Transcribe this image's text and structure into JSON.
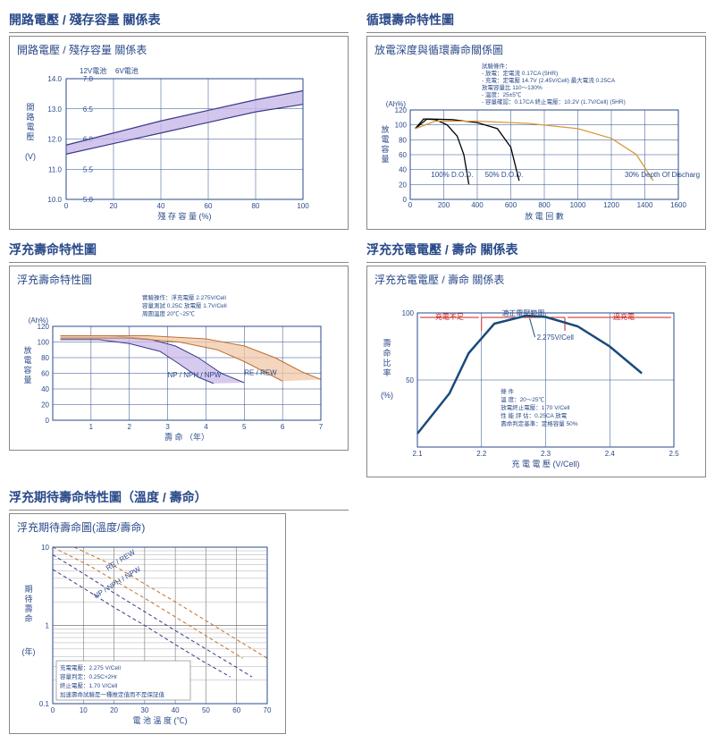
{
  "charts": {
    "ocv": {
      "panel_title": "開路電壓 / 殘存容量 關係表",
      "inner_title": "開路電壓 / 殘存容量 關係表",
      "left_axis_title": "開路電壓 (V)",
      "x_axis_label": "殘 存 容 量 (%)",
      "series_labels": {
        "left": "12V電池",
        "right": "6V電池"
      },
      "xlim": [
        0,
        100
      ],
      "xtick_step": 20,
      "left_ylim": [
        10.0,
        14.0
      ],
      "left_ytick_step": 1.0,
      "right_ylim": [
        5.0,
        7.0
      ],
      "right_ytick_step": 0.5,
      "band": {
        "upper": [
          [
            0,
            11.8
          ],
          [
            20,
            12.2
          ],
          [
            40,
            12.6
          ],
          [
            60,
            12.95
          ],
          [
            80,
            13.3
          ],
          [
            100,
            13.6
          ]
        ],
        "lower": [
          [
            0,
            11.5
          ],
          [
            20,
            11.85
          ],
          [
            40,
            12.2
          ],
          [
            60,
            12.55
          ],
          [
            80,
            12.9
          ],
          [
            100,
            13.15
          ]
        ],
        "fill": "#c8b8e8",
        "line": "#3a3a8a"
      },
      "grid_color": "#2a4a8a",
      "bg": "#ffffff"
    },
    "cycle": {
      "panel_title": "循環壽命特性圖",
      "inner_title": "放電深度與循環壽命關係圖",
      "y_axis_label": "放電容量",
      "x_axis_label": "放 電 回 數",
      "ylim": [
        0,
        120
      ],
      "ytick_step": 20,
      "xlim": [
        0,
        1600
      ],
      "xtick_step": 200,
      "unit_tag": "(Ah%)",
      "notes": [
        "試驗條件：",
        "- 放電：定電流 0.17CA (5HR)",
        "- 充電：定電壓 14.7V (2.45V/Cell)  最大電流 0.25CA",
        "    放電容量比 110～130%",
        "- 溫度：25±5℃",
        "- 容量確認：0.17CA    終止電壓：10.2V (1.7V/Cell) (5HR)"
      ],
      "curves": [
        {
          "label": "100% D.O.D.",
          "color": "#000000",
          "pts": [
            [
              30,
              95
            ],
            [
              80,
              108
            ],
            [
              150,
              107
            ],
            [
              220,
              100
            ],
            [
              280,
              85
            ],
            [
              320,
              60
            ],
            [
              350,
              20
            ]
          ]
        },
        {
          "label": "50% D.O.D.",
          "color": "#000000",
          "pts": [
            [
              30,
              95
            ],
            [
              100,
              108
            ],
            [
              250,
              107
            ],
            [
              400,
              103
            ],
            [
              520,
              95
            ],
            [
              600,
              70
            ],
            [
              650,
              25
            ]
          ]
        },
        {
          "label": "30% Depth Of Discharg",
          "color": "#d59a3a",
          "pts": [
            [
              30,
              95
            ],
            [
              150,
              105
            ],
            [
              400,
              105
            ],
            [
              700,
              102
            ],
            [
              1000,
              95
            ],
            [
              1200,
              82
            ],
            [
              1350,
              60
            ],
            [
              1450,
              25
            ]
          ]
        }
      ],
      "grid_color": "#2a4a8a"
    },
    "floatlife": {
      "panel_title": "浮充壽命特性圖",
      "inner_title": "浮充壽命特性圖",
      "y_axis_label": "放電容量",
      "x_axis_label": "壽 命 （年）",
      "unit_tag": "(Ah%)",
      "ylim": [
        0,
        120
      ],
      "ytick_step": 20,
      "xlim": [
        0,
        7
      ],
      "xticks": [
        1,
        2,
        3,
        4,
        5,
        6,
        7
      ],
      "notes": [
        "實驗操作：浮充電壓 2.275V/Cell",
        "          容量測試 0.25C 放電壓 1.7V/Cell",
        "          周圍溫度 20℃~25℃"
      ],
      "bands": [
        {
          "label": "NP / NPH / NPW",
          "fill": "#c8b8e8",
          "line": "#3a3a8a",
          "upper": [
            [
              0.2,
              108
            ],
            [
              1.5,
              108
            ],
            [
              2.5,
              104
            ],
            [
              3.2,
              95
            ],
            [
              3.8,
              80
            ],
            [
              4.4,
              60
            ],
            [
              5.0,
              48
            ]
          ],
          "lower": [
            [
              0.2,
              103
            ],
            [
              1.2,
              103
            ],
            [
              2.0,
              98
            ],
            [
              2.8,
              88
            ],
            [
              3.3,
              72
            ],
            [
              3.8,
              55
            ],
            [
              4.2,
              47
            ]
          ]
        },
        {
          "label": "RE / REW",
          "fill": "#f0c8a8",
          "line": "#c07030",
          "upper": [
            [
              0.2,
              108
            ],
            [
              2.5,
              108
            ],
            [
              4.0,
              104
            ],
            [
              5.0,
              95
            ],
            [
              5.8,
              80
            ],
            [
              6.5,
              62
            ],
            [
              7.0,
              52
            ]
          ],
          "lower": [
            [
              0.2,
              105
            ],
            [
              2.0,
              105
            ],
            [
              3.3,
              100
            ],
            [
              4.3,
              90
            ],
            [
              5.0,
              75
            ],
            [
              5.6,
              60
            ],
            [
              6.0,
              50
            ]
          ]
        }
      ],
      "grid_color": "#2a4a8a"
    },
    "floatcharge": {
      "panel_title": "浮充充電電壓 / 壽命 關係表",
      "inner_title": "浮充充電電壓 / 壽命 關係表",
      "y_axis_label": "壽命比率 (%)",
      "x_axis_label": "充 電 電 壓 (V/Cell)",
      "ylim": [
        0,
        100
      ],
      "yticks": [
        50,
        100
      ],
      "xlim": [
        2.1,
        2.5
      ],
      "xtick_step": 0.1,
      "range_labels": {
        "low": "充電不足",
        "mid": "適正電壓範圍",
        "high": "過充電"
      },
      "range_x": {
        "left": 2.2,
        "right": 2.33
      },
      "curve": {
        "color": "#1a4a7a",
        "width": 2.5,
        "pts": [
          [
            2.1,
            10
          ],
          [
            2.15,
            40
          ],
          [
            2.18,
            70
          ],
          [
            2.22,
            92
          ],
          [
            2.27,
            98
          ],
          [
            2.3,
            97
          ],
          [
            2.35,
            90
          ],
          [
            2.4,
            75
          ],
          [
            2.45,
            55
          ]
        ]
      },
      "marker_label": "2.275V/Cell",
      "notes": [
        "條 件",
        "溫      度：20～25℃",
        "放電終止電壓：1.70 V/Cell",
        "性 能 評 估：0.25CA 放電",
        "壽命判定基準：定格容量 50%"
      ],
      "grid_color": "#2a4a8a"
    },
    "templife": {
      "panel_title": "浮充期待壽命特性圖（溫度 / 壽命）",
      "inner_title": "浮充期待壽命圖(溫度/壽命)",
      "y_axis_label": "期待壽命（年）",
      "x_axis_label": "電 池 溫 度 (℃)",
      "ylim_log": [
        0.1,
        10
      ],
      "yticks_major": [
        0.1,
        1,
        10
      ],
      "xlim": [
        0,
        70
      ],
      "xtick_step": 10,
      "bands": [
        {
          "label": "RE / REW",
          "line": "#c07030",
          "upper": [
            [
              7,
              10
            ],
            [
              20,
              5.8
            ],
            [
              30,
              3.4
            ],
            [
              40,
              2.0
            ],
            [
              50,
              1.15
            ],
            [
              60,
              0.66
            ],
            [
              70,
              0.38
            ]
          ],
          "lower": [
            [
              0,
              10
            ],
            [
              12,
              5.8
            ],
            [
              22,
              3.4
            ],
            [
              32,
              2.0
            ],
            [
              42,
              1.15
            ],
            [
              52,
              0.66
            ],
            [
              62,
              0.38
            ]
          ]
        },
        {
          "label": "NP / NPH / NPW",
          "line": "#3a3a8a",
          "upper": [
            [
              0,
              8
            ],
            [
              10,
              4.6
            ],
            [
              20,
              2.6
            ],
            [
              30,
              1.5
            ],
            [
              40,
              0.86
            ],
            [
              50,
              0.5
            ],
            [
              60,
              0.29
            ],
            [
              65,
              0.22
            ]
          ],
          "lower": [
            [
              0,
              5.2
            ],
            [
              10,
              3.0
            ],
            [
              20,
              1.7
            ],
            [
              30,
              1.0
            ],
            [
              40,
              0.57
            ],
            [
              50,
              0.33
            ],
            [
              58,
              0.22
            ]
          ]
        }
      ],
      "notes": [
        "充電電壓：2.275 V/Cell",
        "容量判定：0.25C×2Hr",
        "終止電壓：1.70 V/Cell",
        "加速壽命試驗是一種推定值而不是保証值"
      ],
      "grid_color": "#777"
    }
  }
}
